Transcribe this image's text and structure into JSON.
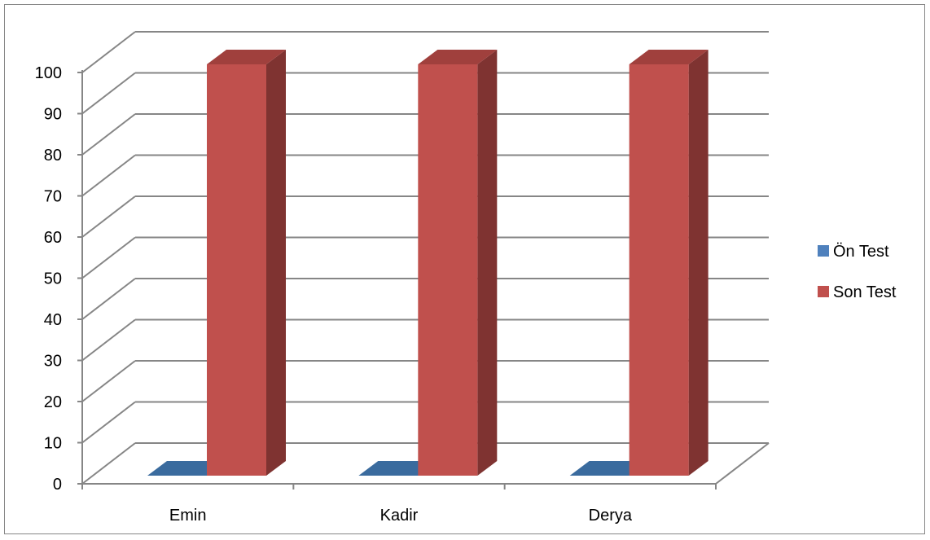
{
  "chart_data": {
    "type": "bar",
    "style": "3d-clustered-column",
    "title": "",
    "xlabel": "",
    "ylabel": "",
    "categories": [
      "Emin",
      "Kadir",
      "Derya"
    ],
    "series": [
      {
        "name": "Ön Test",
        "values": [
          0,
          0,
          0
        ],
        "color": "#4F81BD",
        "side_color": "#2E5F8F",
        "top_color": "#3A6B9E"
      },
      {
        "name": "Son Test",
        "values": [
          100,
          100,
          100
        ],
        "color": "#C0504D",
        "side_color": "#7F3331",
        "top_color": "#A0403D"
      }
    ],
    "ylim": [
      0,
      100
    ],
    "yticks": [
      "0",
      "10",
      "20",
      "30",
      "40",
      "50",
      "60",
      "70",
      "80",
      "90",
      "100"
    ],
    "grid": true,
    "legend_position": "right",
    "gridline_color": "#868686",
    "axis_color": "#868686"
  }
}
